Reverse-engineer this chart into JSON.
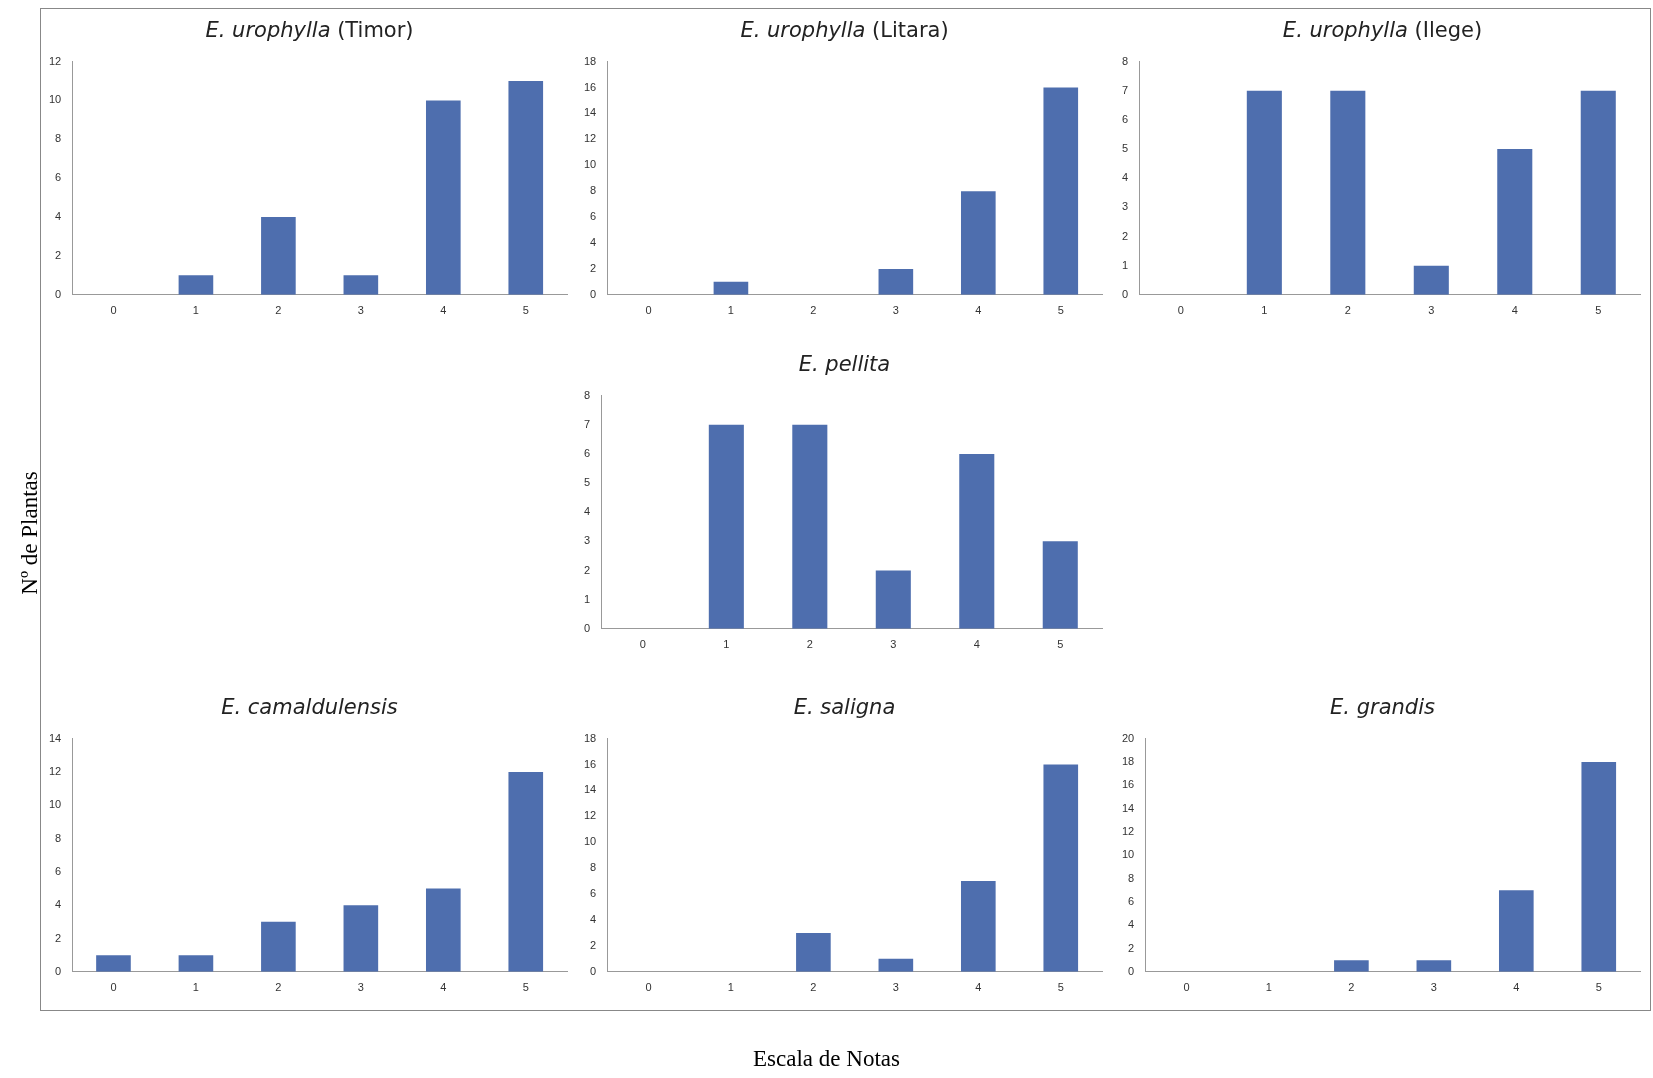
{
  "chart_data": [
    {
      "type": "bar",
      "title": "E. urophylla (Timor)",
      "categories": [
        "0",
        "1",
        "2",
        "3",
        "4",
        "5"
      ],
      "values": [
        0,
        1,
        4,
        1,
        10,
        11
      ],
      "color": "#4e6eae",
      "ylim": [
        0,
        12
      ],
      "yticks": [
        0,
        2,
        4,
        6,
        8,
        10,
        12
      ],
      "grid": false,
      "legend": false
    },
    {
      "type": "bar",
      "title": "E. urophylla (Litara)",
      "categories": [
        "0",
        "1",
        "2",
        "3",
        "4",
        "5"
      ],
      "values": [
        0,
        1,
        0,
        2,
        8,
        16
      ],
      "color": "#4e6eae",
      "ylim": [
        0,
        18
      ],
      "yticks": [
        0,
        2,
        4,
        6,
        8,
        10,
        12,
        14,
        16,
        18
      ],
      "grid": false,
      "legend": false
    },
    {
      "type": "bar",
      "title": "E. urophylla (Ilege)",
      "categories": [
        "0",
        "1",
        "2",
        "3",
        "4",
        "5"
      ],
      "values": [
        0,
        7,
        7,
        1,
        5,
        7
      ],
      "color": "#4e6eae",
      "ylim": [
        0,
        8
      ],
      "yticks": [
        0,
        1,
        2,
        3,
        4,
        5,
        6,
        7,
        8
      ],
      "grid": false,
      "legend": false
    },
    {
      "type": "bar",
      "title": "E. pellita",
      "categories": [
        "0",
        "1",
        "2",
        "3",
        "4",
        "5"
      ],
      "values": [
        0,
        7,
        7,
        2,
        6,
        3
      ],
      "color": "#4e6eae",
      "ylim": [
        0,
        8
      ],
      "yticks": [
        0,
        1,
        2,
        3,
        4,
        5,
        6,
        7,
        8
      ],
      "grid": false,
      "legend": false
    },
    {
      "type": "bar",
      "title": "E. camaldulensis",
      "categories": [
        "0",
        "1",
        "2",
        "3",
        "4",
        "5"
      ],
      "values": [
        1,
        1,
        3,
        4,
        5,
        12
      ],
      "color": "#4e6eae",
      "ylim": [
        0,
        14
      ],
      "yticks": [
        0,
        2,
        4,
        6,
        8,
        10,
        12,
        14
      ],
      "grid": false,
      "legend": false
    },
    {
      "type": "bar",
      "title": "E. saligna",
      "categories": [
        "0",
        "1",
        "2",
        "3",
        "4",
        "5"
      ],
      "values": [
        0,
        0,
        3,
        1,
        7,
        16
      ],
      "color": "#4e6eae",
      "ylim": [
        0,
        18
      ],
      "yticks": [
        0,
        2,
        4,
        6,
        8,
        10,
        12,
        14,
        16,
        18
      ],
      "grid": false,
      "legend": false
    },
    {
      "type": "bar",
      "title": "E. grandis",
      "categories": [
        "0",
        "1",
        "2",
        "3",
        "4",
        "5"
      ],
      "values": [
        0,
        0,
        1,
        1,
        7,
        18
      ],
      "color": "#4e6eae",
      "ylim": [
        0,
        20
      ],
      "yticks": [
        0,
        2,
        4,
        6,
        8,
        10,
        12,
        14,
        16,
        18,
        20
      ],
      "grid": false,
      "legend": false
    },
    {
      "type": "other",
      "xlabel": "Escala de Notas",
      "ylabel": "Nº de Plantas"
    }
  ]
}
